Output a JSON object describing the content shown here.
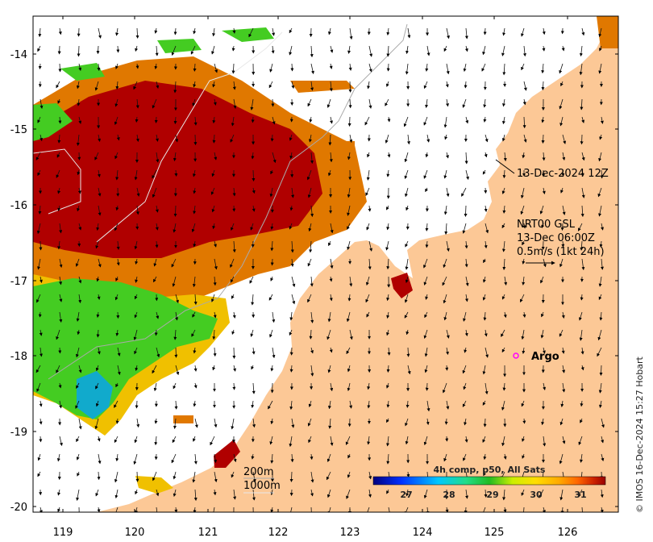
{
  "map": {
    "y_ticks": [
      "-14",
      "-15",
      "-16",
      "-17",
      "-18",
      "-19",
      "-20"
    ],
    "x_ticks": [
      "119",
      "120",
      "121",
      "122",
      "123",
      "124",
      "125",
      "126"
    ],
    "annotations": {
      "track_time": "13-Dec-2024 12Z",
      "model_line1": "NRT00 GSL",
      "model_line2": "13-Dec 06:00Z",
      "model_line3": "0.5m/s (1kt 24h)",
      "argo_label": "Argo",
      "contour_200": "200m",
      "contour_1000": "1000m"
    },
    "colorbar": {
      "title": "4h comp, p50, All Sats",
      "ticks": [
        "27",
        "28",
        "29",
        "30",
        "31"
      ],
      "colors": [
        "#00007f",
        "#0030ff",
        "#00c8ff",
        "#22dd88",
        "#22bb22",
        "#ccee00",
        "#ffdd00",
        "#ffaa00",
        "#ff6600",
        "#cc2200",
        "#990000"
      ]
    },
    "credit": "© IMOS 16-Dec-2024 15:27 Hobart",
    "colors": {
      "land": "#fcc896",
      "sst_hot": "#b00000",
      "sst_orange": "#e07800",
      "sst_yellow": "#f0c000",
      "sst_green": "#44cc22",
      "sst_cyan": "#11aacc",
      "argo": "#ff00ff"
    }
  }
}
